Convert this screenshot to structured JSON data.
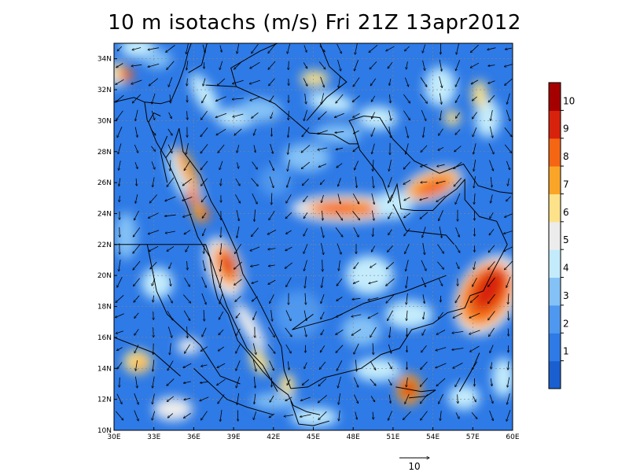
{
  "title": "10 m isotachs (m/s) Fri 21Z 13apr2012",
  "map": {
    "lon_range": [
      30,
      60
    ],
    "lat_range": [
      10,
      35
    ],
    "x_ticks": [
      "30E",
      "33E",
      "36E",
      "39E",
      "42E",
      "45E",
      "48E",
      "51E",
      "54E",
      "57E",
      "60E"
    ],
    "y_ticks": [
      "10N",
      "12N",
      "14N",
      "16N",
      "18N",
      "20N",
      "22N",
      "24N",
      "26N",
      "28N",
      "30N",
      "32N",
      "34N"
    ],
    "grid": true
  },
  "colorbar": {
    "labels": [
      "1",
      "2",
      "3",
      "4",
      "5",
      "6",
      "7",
      "8",
      "9",
      "10"
    ],
    "colors": [
      "#1a5fd0",
      "#2e7ae6",
      "#4f98ef",
      "#84c1f5",
      "#c3ebfb",
      "#ececec",
      "#fde28a",
      "#fba528",
      "#f46614",
      "#d8230c",
      "#a50000"
    ]
  },
  "vector_reference": {
    "label": "10"
  },
  "colors": {
    "background": "#ffffff",
    "coast": "#000000",
    "arrow": "#000000"
  }
}
